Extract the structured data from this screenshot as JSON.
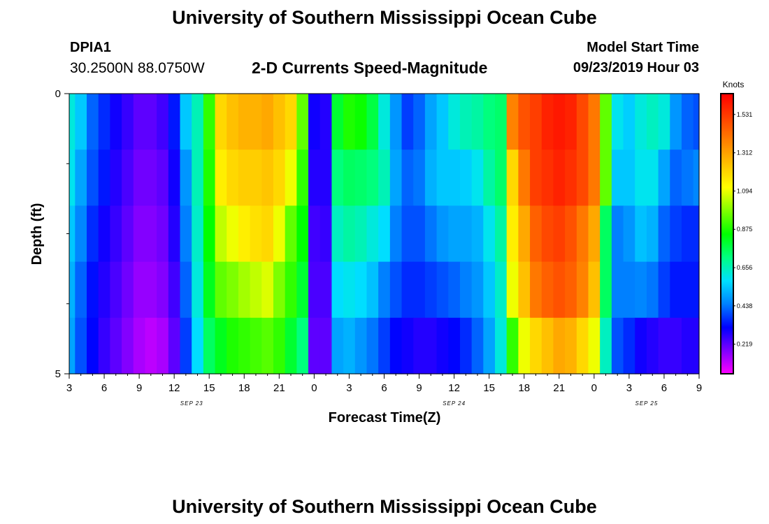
{
  "header": {
    "title": "University of Southern Mississippi Ocean Cube",
    "footer_title": "University of Southern Mississippi Ocean Cube",
    "station_id": "DPIA1",
    "station_coords": "30.2500N 88.0750W",
    "plot_title": "2-D Currents Speed-Magnitude",
    "model_start_label": "Model Start Time",
    "model_start_value": "09/23/2019 Hour 03"
  },
  "chart_data": {
    "type": "heatmap",
    "title": "2-D Currents Speed-Magnitude",
    "xlabel": "Forecast Time(Z)",
    "ylabel": "Depth (ft)",
    "x_tick_labels": [
      "3",
      "6",
      "9",
      "12",
      "15",
      "18",
      "21",
      "0",
      "3",
      "6",
      "9",
      "12",
      "15",
      "18",
      "21",
      "0",
      "3",
      "6",
      "9"
    ],
    "x_range_hours": [
      0,
      54
    ],
    "date_labels": [
      {
        "text": "SEP 23",
        "hour": 10.5
      },
      {
        "text": "SEP 24",
        "hour": 33
      },
      {
        "text": "SEP 25",
        "hour": 49.5
      }
    ],
    "y_tick_labels": [
      "0",
      "5"
    ],
    "ylim": [
      0,
      5
    ],
    "y_minor_ticks": [
      1.25,
      2.5,
      3.75
    ],
    "colorbar": {
      "label": "Knots",
      "ticks": [
        "1.531",
        "1.312",
        "1.094",
        "0.875",
        "0.656",
        "0.438",
        "0.219"
      ],
      "tick_values": [
        1.531,
        1.312,
        1.094,
        0.875,
        0.656,
        0.438,
        0.219
      ],
      "range": [
        0.05,
        1.65
      ],
      "colors": [
        "#ff00ff",
        "#8000ff",
        "#0000ff",
        "#0080ff",
        "#00e0ff",
        "#00ff80",
        "#00ff00",
        "#80ff00",
        "#ffff00",
        "#ffc000",
        "#ff8000",
        "#ff4000",
        "#ff0000"
      ]
    },
    "depth_levels": 5,
    "time_steps_hours": [
      0,
      1,
      2,
      3,
      4,
      5,
      6,
      7,
      8,
      9,
      10,
      11,
      12,
      13,
      14,
      15,
      16,
      17,
      18,
      19,
      20,
      21,
      22,
      23,
      24,
      25,
      26,
      27,
      28,
      29,
      30,
      31,
      32,
      33,
      34,
      35,
      36,
      37,
      38,
      39,
      40,
      41,
      42,
      43,
      44,
      45,
      46,
      47,
      48,
      49,
      50,
      51,
      52,
      53,
      54
    ],
    "speed_knots": [
      [
        0.62,
        0.55,
        0.42,
        0.36,
        0.3,
        0.26,
        0.22,
        0.22,
        0.25,
        0.34,
        0.55,
        0.66,
        0.9,
        1.2,
        1.25,
        1.28,
        1.28,
        1.3,
        1.25,
        1.2,
        0.95,
        0.3,
        0.28,
        0.8,
        0.88,
        0.86,
        0.78,
        0.62,
        0.48,
        0.38,
        0.42,
        0.5,
        0.55,
        0.62,
        0.66,
        0.68,
        0.72,
        0.74,
        1.38,
        1.48,
        1.52,
        1.58,
        1.6,
        1.58,
        1.5,
        1.4,
        0.95,
        0.6,
        0.56,
        0.62,
        0.65,
        0.62,
        0.48,
        0.42,
        0.4
      ],
      [
        0.6,
        0.5,
        0.4,
        0.34,
        0.28,
        0.24,
        0.2,
        0.2,
        0.22,
        0.3,
        0.48,
        0.66,
        0.88,
        1.15,
        1.2,
        1.22,
        1.22,
        1.24,
        1.2,
        1.1,
        0.9,
        0.28,
        0.28,
        0.72,
        0.75,
        0.74,
        0.72,
        0.66,
        0.5,
        0.42,
        0.44,
        0.52,
        0.55,
        0.55,
        0.56,
        0.6,
        0.68,
        0.74,
        1.2,
        1.4,
        1.52,
        1.55,
        1.58,
        1.55,
        1.5,
        1.4,
        0.95,
        0.55,
        0.55,
        0.6,
        0.6,
        0.5,
        0.42,
        0.44,
        0.46
      ],
      [
        0.55,
        0.46,
        0.36,
        0.3,
        0.26,
        0.22,
        0.18,
        0.18,
        0.2,
        0.28,
        0.45,
        0.64,
        0.85,
        1.05,
        1.1,
        1.15,
        1.18,
        1.2,
        1.1,
        0.95,
        0.85,
        0.25,
        0.26,
        0.65,
        0.68,
        0.66,
        0.62,
        0.58,
        0.45,
        0.4,
        0.4,
        0.44,
        0.48,
        0.5,
        0.5,
        0.52,
        0.6,
        0.68,
        1.15,
        1.3,
        1.45,
        1.5,
        1.52,
        1.48,
        1.4,
        1.3,
        0.75,
        0.45,
        0.48,
        0.54,
        0.52,
        0.42,
        0.38,
        0.36,
        0.36
      ],
      [
        0.52,
        0.42,
        0.33,
        0.28,
        0.24,
        0.2,
        0.16,
        0.16,
        0.18,
        0.25,
        0.42,
        0.62,
        0.82,
        0.95,
        0.98,
        1.02,
        1.05,
        1.08,
        0.98,
        0.9,
        0.8,
        0.24,
        0.24,
        0.58,
        0.6,
        0.58,
        0.54,
        0.45,
        0.4,
        0.36,
        0.36,
        0.38,
        0.4,
        0.42,
        0.45,
        0.48,
        0.55,
        0.64,
        1.1,
        1.25,
        1.4,
        1.45,
        1.48,
        1.45,
        1.38,
        1.25,
        0.75,
        0.45,
        0.45,
        0.46,
        0.44,
        0.38,
        0.34,
        0.34,
        0.34
      ],
      [
        0.5,
        0.4,
        0.32,
        0.26,
        0.22,
        0.18,
        0.14,
        0.12,
        0.14,
        0.22,
        0.38,
        0.58,
        0.75,
        0.82,
        0.88,
        0.9,
        0.92,
        0.94,
        0.9,
        0.8,
        0.72,
        0.22,
        0.22,
        0.5,
        0.52,
        0.48,
        0.44,
        0.38,
        0.32,
        0.3,
        0.28,
        0.28,
        0.3,
        0.32,
        0.36,
        0.42,
        0.5,
        0.62,
        0.9,
        1.1,
        1.2,
        1.25,
        1.3,
        1.28,
        1.2,
        1.1,
        0.65,
        0.4,
        0.36,
        0.3,
        0.28,
        0.26,
        0.26,
        0.28,
        0.28
      ]
    ]
  }
}
